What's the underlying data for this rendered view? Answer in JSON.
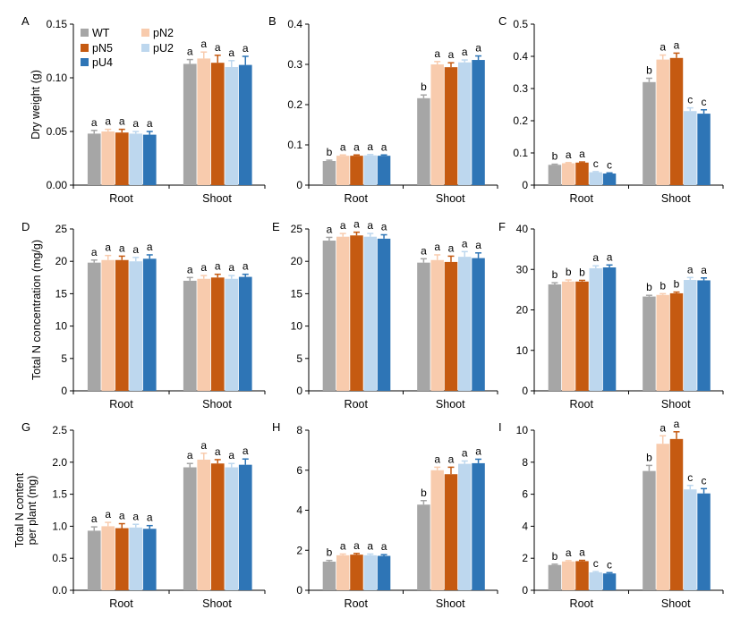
{
  "chart_data": {
    "type": "bar",
    "series_styles": [
      {
        "name": "WT",
        "color": "#a6a6a6"
      },
      {
        "name": "pN5",
        "color": "#c55a11"
      },
      {
        "name": "pU4",
        "color": "#2e75b6"
      },
      {
        "name": "pN2",
        "color": "#f8cbad"
      },
      {
        "name": "pU2",
        "color": "#bdd7ee"
      }
    ],
    "series_order": [
      "WT",
      "pN2",
      "pN5",
      "pU2",
      "pU4"
    ],
    "legend_position": "top-left of panel A",
    "grid": false,
    "row_ylabels": [
      [
        "Dry weight (g)"
      ],
      [
        "Total N concentration (mg/g)"
      ],
      [
        "Total N content",
        "per plant (mg)"
      ]
    ],
    "panels": [
      {
        "letter": "A",
        "categories": [
          "Root",
          "Shoot"
        ],
        "ylim": [
          0,
          0.15
        ],
        "yticks": [
          "0.00",
          "0.05",
          "0.10",
          "0.15"
        ],
        "values": [
          [
            0.048,
            0.05,
            0.049,
            0.048,
            0.047
          ],
          [
            0.113,
            0.118,
            0.114,
            0.11,
            0.112
          ]
        ],
        "errors": [
          [
            0.003,
            0.002,
            0.003,
            0.002,
            0.003
          ],
          [
            0.004,
            0.006,
            0.007,
            0.006,
            0.008
          ]
        ],
        "letters": [
          [
            "a",
            "a",
            "a",
            "a",
            "a"
          ],
          [
            "a",
            "a",
            "a",
            "a",
            "a"
          ]
        ]
      },
      {
        "letter": "B",
        "categories": [
          "Root",
          "Shoot"
        ],
        "ylim": [
          0,
          0.4
        ],
        "yticks": [
          "0",
          "0.1",
          "0.2",
          "0.3",
          "0.4"
        ],
        "values": [
          [
            0.06,
            0.073,
            0.073,
            0.074,
            0.073
          ],
          [
            0.216,
            0.3,
            0.293,
            0.305,
            0.311
          ]
        ],
        "errors": [
          [
            0.002,
            0.002,
            0.002,
            0.002,
            0.002
          ],
          [
            0.008,
            0.007,
            0.011,
            0.006,
            0.01
          ]
        ],
        "letters": [
          [
            "b",
            "a",
            "a",
            "a",
            "a"
          ],
          [
            "b",
            "a",
            "a",
            "a",
            "a"
          ]
        ]
      },
      {
        "letter": "C",
        "categories": [
          "Root",
          "Shoot"
        ],
        "ylim": [
          0,
          0.5
        ],
        "yticks": [
          "0",
          "0.1",
          "0.2",
          "0.3",
          "0.4",
          "0.5"
        ],
        "values": [
          [
            0.063,
            0.068,
            0.07,
            0.04,
            0.036
          ],
          [
            0.32,
            0.39,
            0.395,
            0.23,
            0.222
          ]
        ],
        "errors": [
          [
            0.002,
            0.002,
            0.002,
            0.002,
            0.002
          ],
          [
            0.012,
            0.014,
            0.015,
            0.01,
            0.012
          ]
        ],
        "letters": [
          [
            "b",
            "a",
            "a",
            "c",
            "c"
          ],
          [
            "b",
            "a",
            "a",
            "c",
            "c"
          ]
        ]
      },
      {
        "letter": "D",
        "categories": [
          "Root",
          "Shoot"
        ],
        "ylim": [
          0,
          25
        ],
        "yticks": [
          "0",
          "5",
          "10",
          "15",
          "20",
          "25"
        ],
        "values": [
          [
            19.8,
            20.2,
            20.2,
            20.0,
            20.4
          ],
          [
            17.0,
            17.3,
            17.5,
            17.3,
            17.6
          ]
        ],
        "errors": [
          [
            0.4,
            0.7,
            0.6,
            0.6,
            0.6
          ],
          [
            0.5,
            0.5,
            0.5,
            0.5,
            0.4
          ]
        ],
        "letters": [
          [
            "a",
            "a",
            "a",
            "a",
            "a"
          ],
          [
            "a",
            "a",
            "a",
            "a",
            "a"
          ]
        ]
      },
      {
        "letter": "E",
        "categories": [
          "Root",
          "Shoot"
        ],
        "ylim": [
          0,
          25
        ],
        "yticks": [
          "0",
          "5",
          "10",
          "15",
          "20",
          "25"
        ],
        "values": [
          [
            23.2,
            23.8,
            24.0,
            23.8,
            23.5
          ],
          [
            19.8,
            20.2,
            19.9,
            20.7,
            20.5
          ]
        ],
        "errors": [
          [
            0.5,
            0.5,
            0.5,
            0.5,
            0.6
          ],
          [
            0.6,
            0.8,
            0.9,
            0.8,
            0.8
          ]
        ],
        "letters": [
          [
            "a",
            "a",
            "a",
            "a",
            "a"
          ],
          [
            "a",
            "a",
            "a",
            "a",
            "a"
          ]
        ]
      },
      {
        "letter": "F",
        "categories": [
          "Root",
          "Shoot"
        ],
        "ylim": [
          0,
          40
        ],
        "yticks": [
          "0",
          "10",
          "20",
          "30",
          "40"
        ],
        "values": [
          [
            26.3,
            27.0,
            27.0,
            30.3,
            30.5
          ],
          [
            23.3,
            23.7,
            24.1,
            27.4,
            27.3
          ]
        ],
        "errors": [
          [
            0.4,
            0.4,
            0.3,
            0.6,
            0.6
          ],
          [
            0.3,
            0.3,
            0.3,
            0.6,
            0.6
          ]
        ],
        "letters": [
          [
            "b",
            "b",
            "b",
            "a",
            "a"
          ],
          [
            "b",
            "b",
            "b",
            "a",
            "a"
          ]
        ]
      },
      {
        "letter": "G",
        "categories": [
          "Root",
          "Shoot"
        ],
        "ylim": [
          0,
          2.5
        ],
        "yticks": [
          "0.0",
          "0.5",
          "1.0",
          "1.5",
          "2.0",
          "2.5"
        ],
        "values": [
          [
            0.93,
            1.0,
            0.97,
            0.98,
            0.96
          ],
          [
            1.92,
            2.04,
            1.98,
            1.92,
            1.96
          ]
        ],
        "errors": [
          [
            0.06,
            0.06,
            0.07,
            0.05,
            0.05
          ],
          [
            0.06,
            0.1,
            0.06,
            0.06,
            0.09
          ]
        ],
        "letters": [
          [
            "a",
            "a",
            "a",
            "a",
            "a"
          ],
          [
            "a",
            "a",
            "a",
            "a",
            "a"
          ]
        ]
      },
      {
        "letter": "H",
        "categories": [
          "Root",
          "Shoot"
        ],
        "ylim": [
          0,
          8
        ],
        "yticks": [
          "0",
          "2",
          "4",
          "6",
          "8"
        ],
        "values": [
          [
            1.43,
            1.75,
            1.78,
            1.75,
            1.72
          ],
          [
            4.28,
            6.0,
            5.8,
            6.32,
            6.35
          ]
        ],
        "errors": [
          [
            0.06,
            0.06,
            0.06,
            0.06,
            0.06
          ],
          [
            0.2,
            0.15,
            0.35,
            0.14,
            0.2
          ]
        ],
        "letters": [
          [
            "b",
            "a",
            "a",
            "a",
            "a"
          ],
          [
            "b",
            "a",
            "a",
            "a",
            "a"
          ]
        ]
      },
      {
        "letter": "I",
        "categories": [
          "Root",
          "Shoot"
        ],
        "ylim": [
          0,
          10
        ],
        "yticks": [
          "0",
          "2",
          "4",
          "6",
          "8",
          "10"
        ],
        "values": [
          [
            1.58,
            1.8,
            1.82,
            1.12,
            1.05
          ],
          [
            7.45,
            9.15,
            9.45,
            6.3,
            6.05
          ]
        ],
        "errors": [
          [
            0.05,
            0.05,
            0.05,
            0.05,
            0.05
          ],
          [
            0.35,
            0.5,
            0.45,
            0.25,
            0.3
          ]
        ],
        "letters": [
          [
            "b",
            "a",
            "a",
            "c",
            "c"
          ],
          [
            "b",
            "a",
            "a",
            "c",
            "c"
          ]
        ]
      }
    ]
  }
}
